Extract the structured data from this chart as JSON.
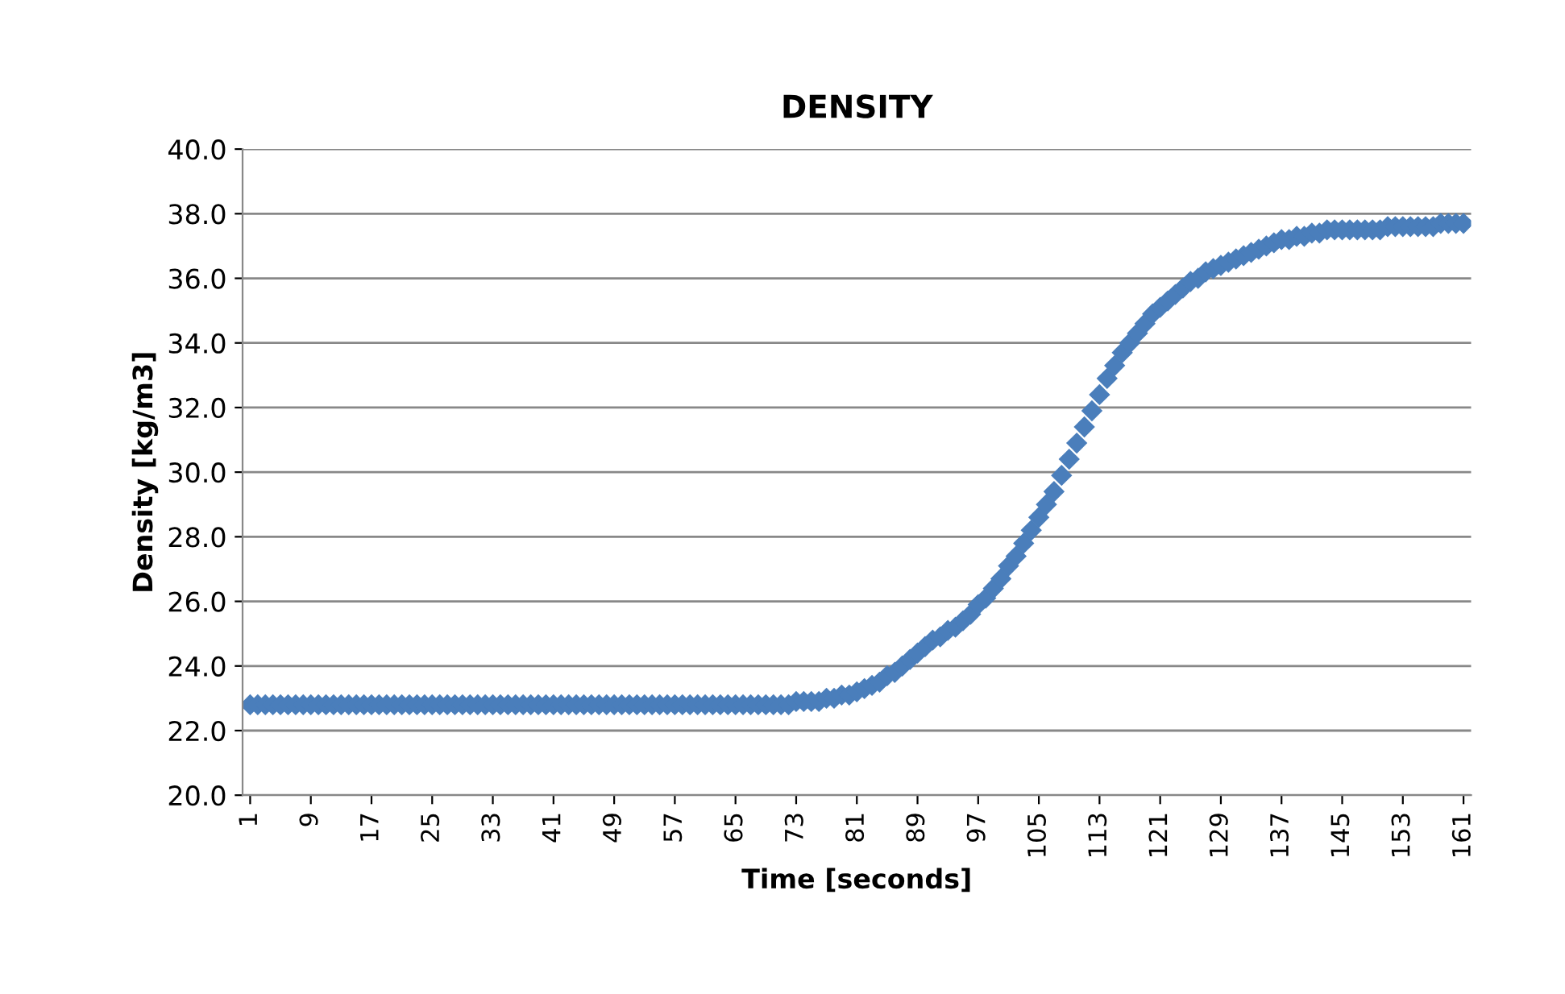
{
  "chart_data": {
    "type": "scatter",
    "title": "DENSITY",
    "xlabel": "Time [seconds]",
    "ylabel": "Density [kg/m3]",
    "categories": [
      "1",
      null,
      null,
      null,
      null,
      null,
      null,
      null,
      "9",
      null,
      null,
      null,
      null,
      null,
      null,
      null,
      "17",
      null,
      null,
      null,
      null,
      null,
      null,
      null,
      "25",
      null,
      null,
      null,
      null,
      null,
      null,
      null,
      "33",
      null,
      null,
      null,
      null,
      null,
      null,
      null,
      "41",
      null,
      null,
      null,
      null,
      null,
      null,
      null,
      "49",
      null,
      null,
      null,
      null,
      null,
      null,
      null,
      "57",
      null,
      null,
      null,
      null,
      null,
      null,
      null,
      "65",
      null,
      null,
      null,
      null,
      null,
      null,
      null,
      "73",
      null,
      null,
      null,
      null,
      null,
      null,
      null,
      "81",
      null,
      null,
      null,
      null,
      null,
      null,
      null,
      "89",
      null,
      null,
      null,
      null,
      null,
      null,
      null,
      "97",
      null,
      null,
      null,
      null,
      null,
      null,
      null,
      "105",
      null,
      null,
      null,
      null,
      null,
      null,
      null,
      "113",
      null,
      null,
      null,
      null,
      null,
      null,
      null,
      "121",
      null,
      null,
      null,
      null,
      null,
      null,
      null,
      "129",
      null,
      null,
      null,
      null,
      null,
      null,
      null,
      "137",
      null,
      null,
      null,
      null,
      null,
      null,
      null,
      "145",
      null,
      null,
      null,
      null,
      null,
      null,
      null,
      "153",
      null,
      null,
      null,
      null,
      null,
      null,
      null,
      "161"
    ],
    "series": [
      {
        "color": "#4a7ebb",
        "values": [
          22.8,
          22.8,
          22.8,
          22.8,
          22.8,
          22.8,
          22.8,
          22.8,
          22.8,
          22.8,
          22.8,
          22.8,
          22.8,
          22.8,
          22.8,
          22.8,
          22.8,
          22.8,
          22.8,
          22.8,
          22.8,
          22.8,
          22.8,
          22.8,
          22.8,
          22.8,
          22.8,
          22.8,
          22.8,
          22.8,
          22.8,
          22.8,
          22.8,
          22.8,
          22.8,
          22.8,
          22.8,
          22.8,
          22.8,
          22.8,
          22.8,
          22.8,
          22.8,
          22.8,
          22.8,
          22.8,
          22.8,
          22.8,
          22.8,
          22.8,
          22.8,
          22.8,
          22.8,
          22.8,
          22.8,
          22.8,
          22.8,
          22.8,
          22.8,
          22.8,
          22.8,
          22.8,
          22.8,
          22.8,
          22.8,
          22.8,
          22.8,
          22.8,
          22.8,
          22.8,
          22.8,
          22.8,
          22.9,
          22.9,
          22.9,
          22.9,
          23.0,
          23.0,
          23.1,
          23.1,
          23.2,
          23.3,
          23.4,
          23.5,
          23.7,
          23.8,
          24.0,
          24.2,
          24.4,
          24.6,
          24.8,
          24.9,
          25.1,
          25.2,
          25.4,
          25.6,
          25.9,
          26.1,
          26.4,
          26.7,
          27.1,
          27.4,
          27.8,
          28.2,
          28.6,
          29.0,
          29.4,
          29.9,
          30.4,
          30.9,
          31.4,
          31.9,
          32.4,
          32.9,
          33.3,
          33.7,
          34.0,
          34.3,
          34.6,
          34.9,
          35.1,
          35.3,
          35.5,
          35.7,
          35.9,
          36.0,
          36.2,
          36.3,
          36.4,
          36.5,
          36.6,
          36.7,
          36.8,
          36.9,
          37.0,
          37.1,
          37.2,
          37.2,
          37.3,
          37.3,
          37.4,
          37.4,
          37.5,
          37.5,
          37.5,
          37.5,
          37.5,
          37.5,
          37.5,
          37.5,
          37.6,
          37.6,
          37.6,
          37.6,
          37.6,
          37.6,
          37.6,
          37.7,
          37.7,
          37.7,
          37.7
        ]
      }
    ],
    "ylim": [
      20,
      40
    ],
    "yticks": [
      {
        "value": 20,
        "label": "20.0"
      },
      {
        "value": 22,
        "label": "22.0"
      },
      {
        "value": 24,
        "label": "24.0"
      },
      {
        "value": 26,
        "label": "26.0"
      },
      {
        "value": 28,
        "label": "28.0"
      },
      {
        "value": 30,
        "label": "30.0"
      },
      {
        "value": 32,
        "label": "32.0"
      },
      {
        "value": 34,
        "label": "34.0"
      },
      {
        "value": 36,
        "label": "36.0"
      },
      {
        "value": 38,
        "label": "38.0"
      },
      {
        "value": 40,
        "label": "40.0"
      }
    ],
    "grid": "y",
    "legend": false,
    "marker": "diamond"
  }
}
